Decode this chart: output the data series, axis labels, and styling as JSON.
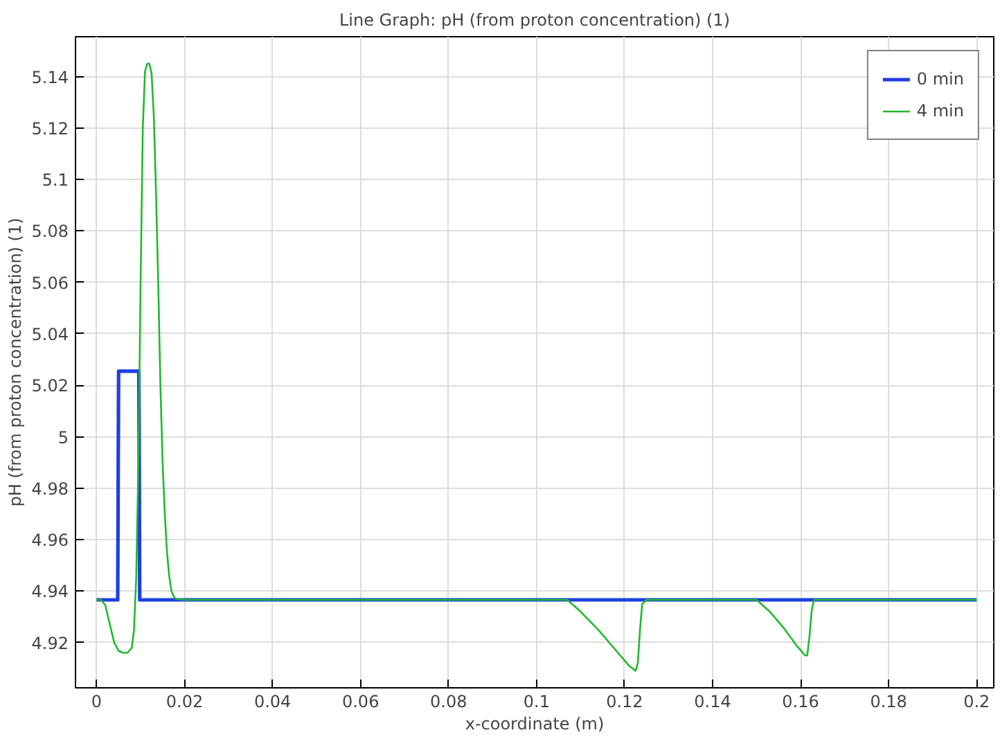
{
  "chart_data": {
    "type": "line",
    "title": "Line Graph: pH (from proton concentration) (1)",
    "xlabel": "x-coordinate (m)",
    "ylabel": "pH (from proton concentration) (1)",
    "xlim": [
      -0.0048,
      0.2039
    ],
    "ylim": [
      4.9024,
      5.1555
    ],
    "xticks": [
      0,
      0.02,
      0.04,
      0.06,
      0.08,
      0.1,
      0.12,
      0.14,
      0.16,
      0.18,
      0.2
    ],
    "yticks": [
      4.92,
      4.94,
      4.96,
      4.98,
      5,
      5.02,
      5.04,
      5.06,
      5.08,
      {
        "value": 5.1,
        "label": "5.1"
      },
      5.12,
      5.14
    ],
    "grid": true,
    "legend": "top right",
    "line_style": "solid",
    "series": [
      {
        "name": "0 min",
        "color": "#1f3fe0",
        "x": [
          0,
          0.0048,
          0.005,
          0.0096,
          0.0098,
          0.2
        ],
        "values": [
          4.9366,
          4.9366,
          5.0255,
          5.0255,
          4.9366,
          4.9366
        ]
      },
      {
        "name": "4 min",
        "color": "#20b830",
        "x": [
          0,
          0.001,
          0.002,
          0.003,
          0.004,
          0.005,
          0.006,
          0.007,
          0.008,
          0.0085,
          0.009,
          0.0095,
          0.01,
          0.0105,
          0.011,
          0.0115,
          0.012,
          0.0125,
          0.013,
          0.0135,
          0.014,
          0.0145,
          0.015,
          0.0155,
          0.016,
          0.0165,
          0.017,
          0.0175,
          0.018,
          0.02,
          0.105,
          0.107,
          0.11,
          0.114,
          0.118,
          0.121,
          0.1225,
          0.123,
          0.1235,
          0.124,
          0.125,
          0.148,
          0.15,
          0.153,
          0.156,
          0.159,
          0.161,
          0.1615,
          0.162,
          0.1625,
          0.163,
          0.2
        ],
        "values": [
          4.9366,
          4.9366,
          4.9345,
          4.927,
          4.92,
          4.9168,
          4.916,
          4.916,
          4.918,
          4.925,
          4.945,
          4.99,
          5.06,
          5.12,
          5.142,
          5.145,
          5.145,
          5.141,
          5.125,
          5.095,
          5.06,
          5.02,
          4.99,
          4.97,
          4.955,
          4.946,
          4.94,
          4.938,
          4.937,
          4.9366,
          4.9366,
          4.9366,
          4.932,
          4.925,
          4.917,
          4.911,
          4.909,
          4.912,
          4.925,
          4.935,
          4.9366,
          4.9366,
          4.9366,
          4.932,
          4.926,
          4.919,
          4.915,
          4.915,
          4.922,
          4.932,
          4.9366,
          4.9366
        ]
      }
    ]
  }
}
